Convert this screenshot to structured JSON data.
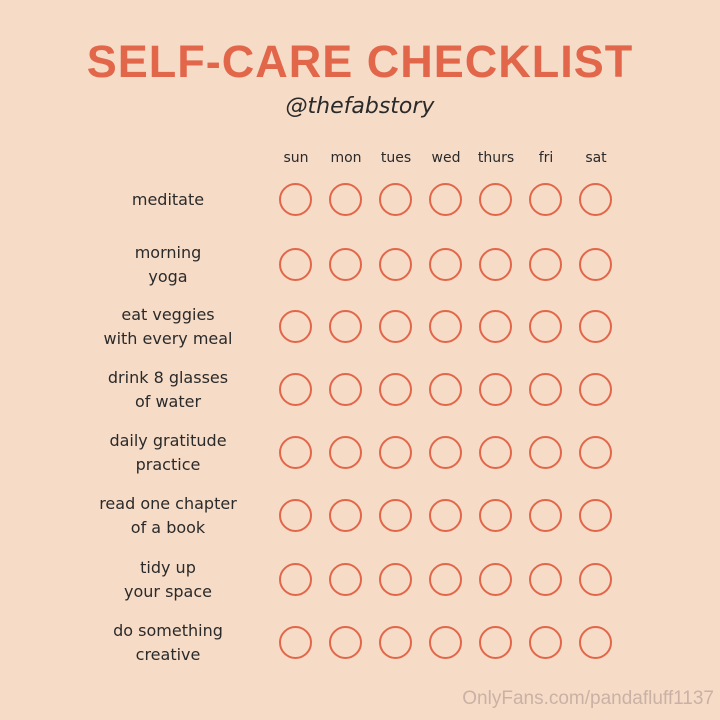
{
  "title": "SELF-CARE CHECKLIST",
  "handle": "@thefabstory",
  "days": [
    "sun",
    "mon",
    "tues",
    "wed",
    "thurs",
    "fri",
    "sat"
  ],
  "tasks": [
    {
      "line1": "meditate",
      "line2": ""
    },
    {
      "line1": "morning",
      "line2": "yoga"
    },
    {
      "line1": "eat veggies",
      "line2": "with every meal"
    },
    {
      "line1": "drink 8 glasses",
      "line2": "of water"
    },
    {
      "line1": "daily gratitude",
      "line2": "practice"
    },
    {
      "line1": "read one chapter",
      "line2": "of a book"
    },
    {
      "line1": "tidy up",
      "line2": "your space"
    },
    {
      "line1": "do something",
      "line2": "creative"
    }
  ],
  "checked": [
    [
      0,
      0,
      0,
      0,
      0,
      0,
      0
    ],
    [
      0,
      0,
      0,
      0,
      0,
      0,
      0
    ],
    [
      0,
      0,
      0,
      0,
      0,
      0,
      0
    ],
    [
      0,
      0,
      0,
      0,
      0,
      0,
      0
    ],
    [
      0,
      0,
      0,
      0,
      0,
      0,
      0
    ],
    [
      0,
      0,
      0,
      0,
      0,
      0,
      0
    ],
    [
      0,
      0,
      0,
      0,
      0,
      0,
      0
    ],
    [
      0,
      0,
      0,
      0,
      0,
      0,
      0
    ]
  ],
  "colors": {
    "accent": "#e2674a",
    "background": "#f6dbc7",
    "text": "#2a2a2a"
  },
  "watermark": "OnlyFans.com/pandafluff1137"
}
